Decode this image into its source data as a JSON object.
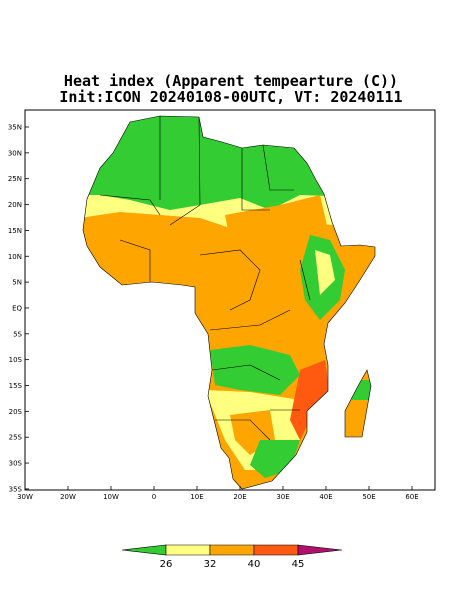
{
  "title": [
    "Heat index (Apparent tempearture (C))",
    "Init:ICON 20240108-00UTC, VT: 20240111"
  ],
  "lat_labels": [
    "35N",
    "30N",
    "25N",
    "20N",
    "15N",
    "10N",
    "5N",
    "EQ",
    "5S",
    "10S",
    "15S",
    "20S",
    "25S",
    "30S",
    "35S"
  ],
  "lon_labels": [
    "30W",
    "20W",
    "10W",
    "0",
    "10E",
    "20E",
    "30E",
    "40E",
    "50E",
    "60E"
  ],
  "legend": {
    "labels": [
      "26",
      "32",
      "40",
      "45"
    ],
    "colors": [
      "#33cc33",
      "#ffff80",
      "#ffa500",
      "#ff5a10",
      "#b0106a"
    ]
  }
}
